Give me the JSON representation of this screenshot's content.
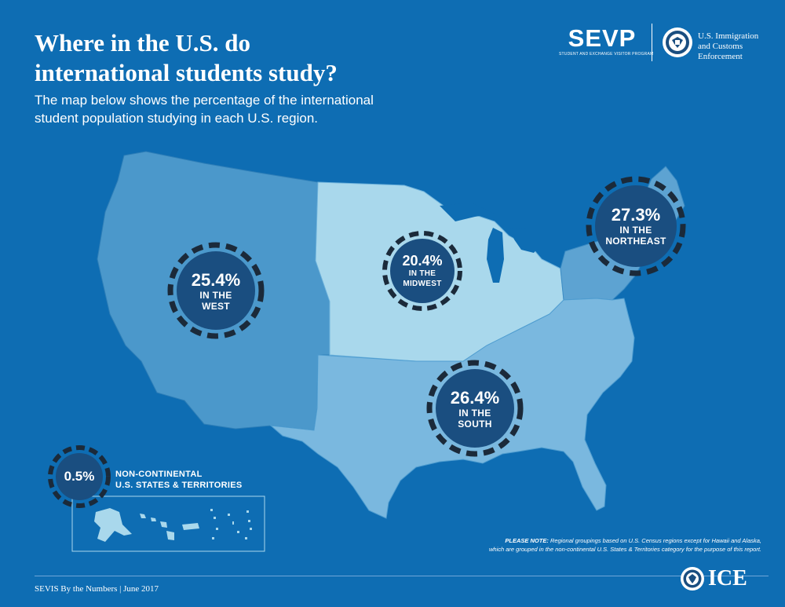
{
  "header": {
    "title_line1": "Where in the U.S. do",
    "title_line2": "international students study?",
    "subtitle_line1": "The map below shows the percentage of the international",
    "subtitle_line2": "student population studying in each U.S. region."
  },
  "logos": {
    "sevp_name": "SEVP",
    "sevp_full": "STUDENT AND EXCHANGE VISITOR PROGRAM",
    "agency_line1": "U.S. Immigration",
    "agency_line2": "and Customs",
    "agency_line3": "Enforcement",
    "ice_word": "ICE"
  },
  "regions": {
    "west": {
      "value": "25.4%",
      "label1": "IN THE",
      "label2": "WEST",
      "color": "#4b98cb"
    },
    "midwest": {
      "value": "20.4%",
      "label1": "IN THE",
      "label2": "MIDWEST",
      "color": "#a9d8ec"
    },
    "northeast": {
      "value": "27.3%",
      "label1": "IN THE",
      "label2": "NORTHEAST",
      "color": "#5da3d2"
    },
    "south": {
      "value": "26.4%",
      "label1": "IN THE",
      "label2": "SOUTH",
      "color": "#7ab8df"
    },
    "noncontinental": {
      "value": "0.5%",
      "label1": "NON-CONTINENTAL",
      "label2": "U.S. STATES & TERRITORIES"
    }
  },
  "colors": {
    "background": "#0e6db3",
    "bubble": "#1a4e80",
    "dash": "#1b2a3a"
  },
  "note": {
    "lead": "PLEASE NOTE:",
    "text1": "Regional groupings based on U.S. Census regions except for Hawaii and Alaska,",
    "text2": "which are grouped in the non-continental U.S. States & Territories category for the purpose of this report."
  },
  "footer": {
    "text": "SEVIS By the Numbers | June 2017"
  }
}
